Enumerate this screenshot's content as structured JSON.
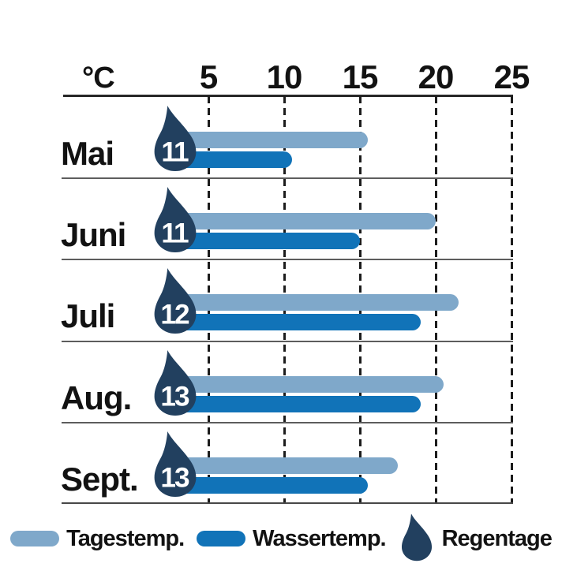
{
  "header": {
    "unit_label": "°C",
    "tick_labels": [
      "5",
      "10",
      "15",
      "20",
      "25"
    ]
  },
  "chart_data": {
    "type": "bar",
    "orientation": "horizontal",
    "title": "",
    "xlabel": "°C",
    "ylabel": "",
    "xlim": [
      0,
      25
    ],
    "xticks": [
      5,
      10,
      15,
      20,
      25
    ],
    "grid": "dashed-vertical-lines",
    "legend_position": "bottom",
    "categories": [
      "Mai",
      "Juni",
      "Juli",
      "Aug.",
      "Sept."
    ],
    "series": [
      {
        "name": "Tagestemp.",
        "values": [
          15.5,
          20,
          21.5,
          20.5,
          17.5
        ]
      },
      {
        "name": "Wassertemp.",
        "values": [
          10.5,
          15,
          19,
          19,
          15.5
        ]
      }
    ],
    "rain_days": {
      "name": "Regentage",
      "values": [
        11,
        11,
        12,
        13,
        13
      ]
    }
  },
  "legend": {
    "items": [
      {
        "label": "Tagestemp.",
        "swatch": "light-blue-pill"
      },
      {
        "label": "Wassertemp.",
        "swatch": "dark-blue-pill"
      },
      {
        "label": "Regentage",
        "swatch": "raindrop-icon"
      }
    ]
  },
  "colors": {
    "day_temp": "#7fa8ca",
    "water_temp": "#1173b8",
    "raindrop": "#22405f",
    "rain_number_text": "#ffffff",
    "grid_line": "#1c1c1c",
    "axis_line": "#262626",
    "separator_line": "#5d5d5d",
    "text": "#121212",
    "background": "#ffffff"
  }
}
